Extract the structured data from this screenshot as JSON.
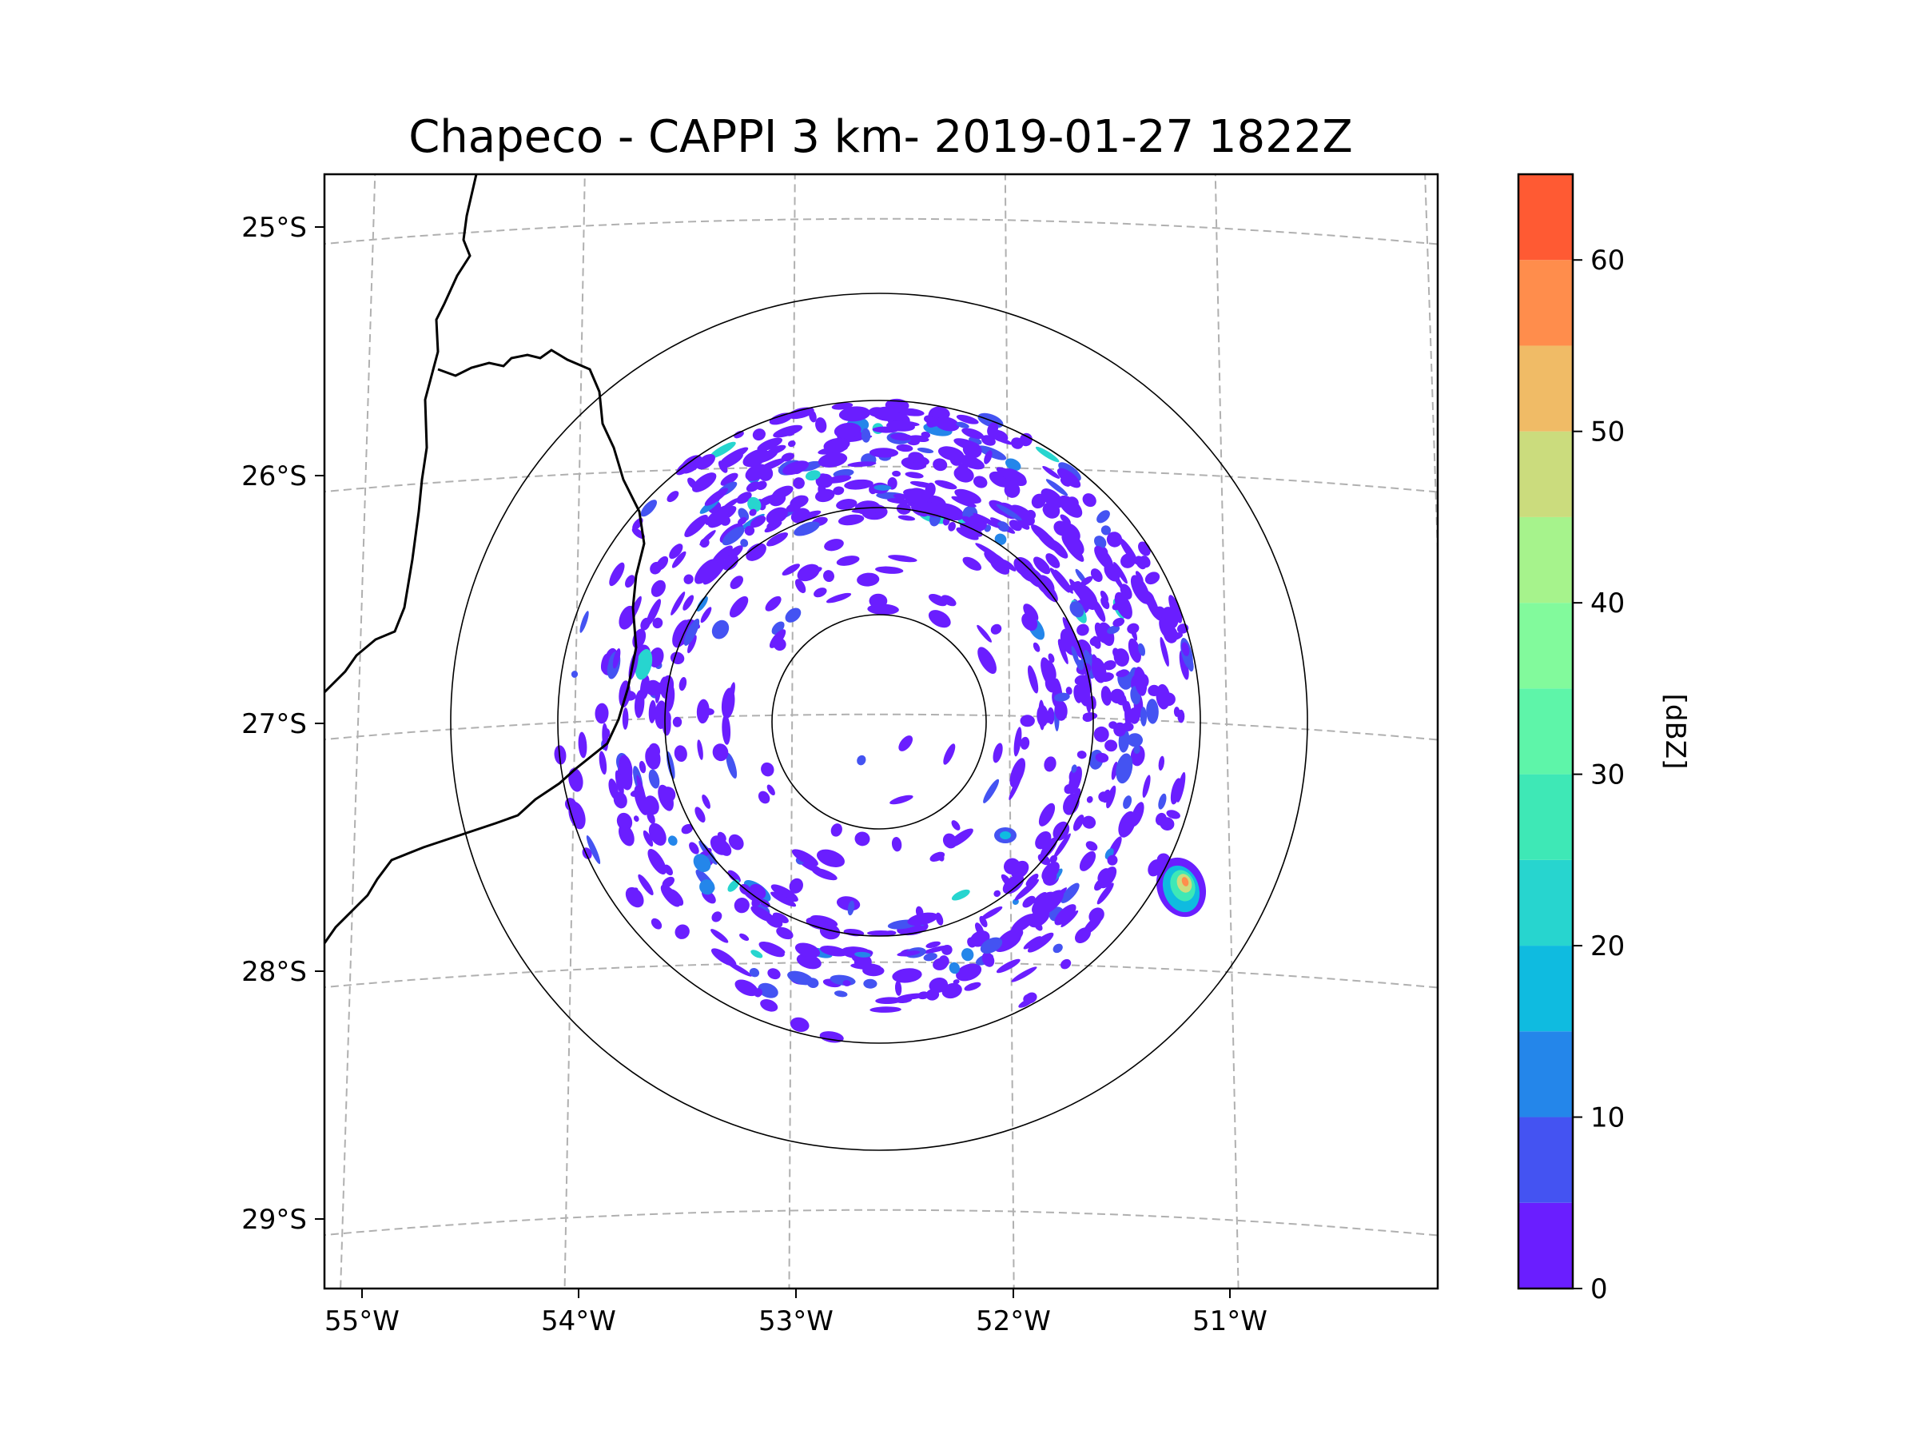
{
  "chart_data": {
    "type": "heatmap",
    "title": "Chapeco - CAPPI 3 km- 2019-01-27 1822Z",
    "projection": "azimuthal radar display",
    "radar_center": {
      "lon": -52.6,
      "lat": -27.03
    },
    "x_axis": {
      "ticks": [
        "55°W",
        "54°W",
        "53°W",
        "52°W",
        "51°W"
      ],
      "tick_values": [
        -55,
        -54,
        -53,
        -52,
        -51
      ],
      "lim": [
        -55.2,
        -50.1
      ]
    },
    "y_axis": {
      "ticks": [
        "25°S",
        "26°S",
        "27°S",
        "28°S",
        "29°S"
      ],
      "tick_values": [
        -25,
        -26,
        -27,
        -28,
        -29
      ],
      "lim": [
        -29.3,
        -24.8
      ]
    },
    "grid": true,
    "range_rings_km": [
      50,
      100,
      150,
      200
    ],
    "colorbar": {
      "label": "[dBZ]",
      "ticks": [
        "0",
        "10",
        "20",
        "30",
        "40",
        "50",
        "60"
      ],
      "tick_values": [
        0,
        10,
        20,
        30,
        40,
        50,
        60
      ],
      "range": [
        0,
        65
      ],
      "levels": [
        0,
        5,
        10,
        15,
        20,
        25,
        30,
        35,
        40,
        45,
        50,
        55,
        60,
        65
      ],
      "colors": [
        "#6a1eff",
        "#4453f2",
        "#2486ea",
        "#0fbbe0",
        "#27d5cf",
        "#3ee8b6",
        "#5ef5a9",
        "#82fa9c",
        "#a6f38c",
        "#cbdc7d",
        "#f0bb66",
        "#ff8d4c",
        "#ff5a33",
        "#ff2417"
      ]
    },
    "echo_regions": [
      {
        "name": "northern arc",
        "value_dbz": [
          0,
          15
        ]
      },
      {
        "name": "eastern band",
        "value_dbz": [
          0,
          20
        ]
      },
      {
        "name": "southern ring",
        "value_dbz": [
          0,
          15
        ]
      },
      {
        "name": "southeast cell",
        "value_dbz": [
          0,
          45
        ]
      }
    ]
  },
  "colors": {
    "grid": "#b0b0b0",
    "border": "#000000",
    "low_echo": "#6a1eff",
    "mid_echo": "#2486ea"
  }
}
